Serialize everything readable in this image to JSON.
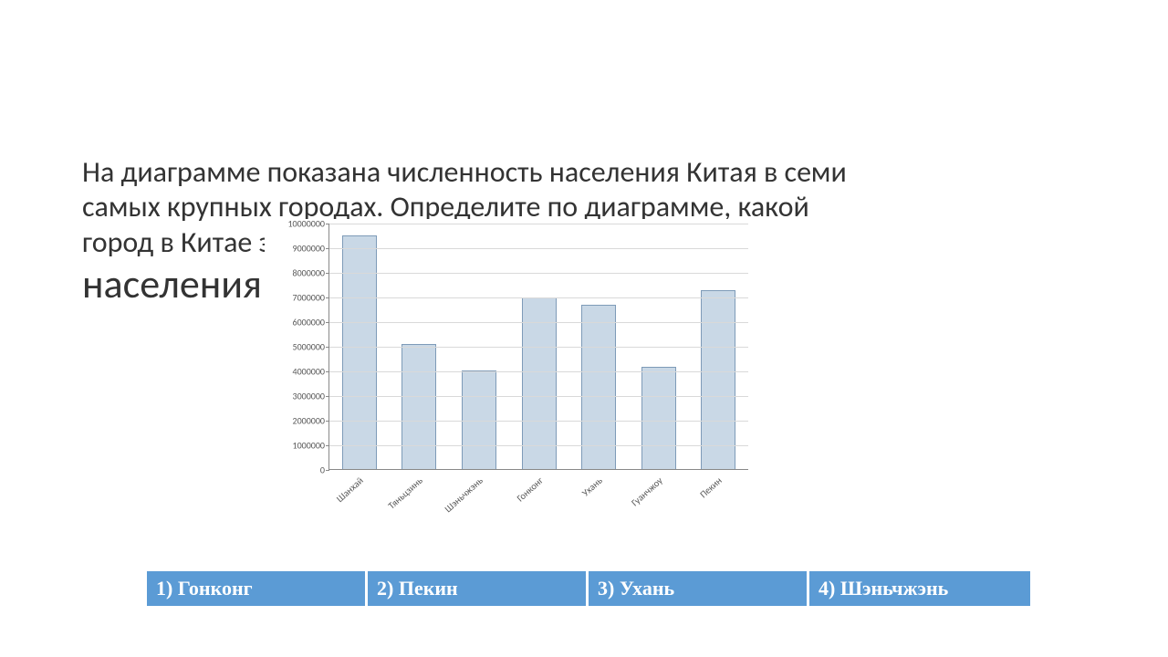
{
  "question": {
    "line1": "На диаграмме показана численность населения Китая в семи",
    "line2": "самых крупных городах. Определите по диаграмме, какой",
    "line3": "город в Китае занимает третье место по численности",
    "line4": "населения"
  },
  "chart": {
    "type": "bar",
    "categories": [
      "Шанхай",
      "Тяньцзинь",
      "Шэньчжэнь",
      "Гонконг",
      "Ухань",
      "Гуанчжоу",
      "Пекин"
    ],
    "values": [
      9500000,
      5100000,
      4000000,
      7000000,
      6700000,
      4150000,
      7300000
    ],
    "bar_fill": "#c9d8e6",
    "bar_border": "#7e9bb8",
    "bar_width": 0.58,
    "ylim": [
      0,
      10000000
    ],
    "ytick_step": 1000000,
    "yticks": [
      "0",
      "1000000",
      "2000000",
      "3000000",
      "4000000",
      "5000000",
      "6000000",
      "7000000",
      "8000000",
      "9000000",
      "10000000"
    ],
    "grid_color": "#d9d9d9",
    "axis_color": "#888888",
    "tick_font_size": 10,
    "xlabel_font_size": 10.5,
    "xlabel_rotation_deg": -42,
    "background_color": "#ffffff",
    "text_color": "#595959"
  },
  "answers": {
    "options": [
      {
        "label": "1) Гонконг",
        "width_pct": 25
      },
      {
        "label": "2) Пекин",
        "width_pct": 25
      },
      {
        "label": "3) Ухань",
        "width_pct": 25
      },
      {
        "label": "4) Шэньчжэнь",
        "width_pct": 25
      }
    ],
    "bg_color": "#5b9bd5",
    "text_color": "#ffffff",
    "font_size": 22
  }
}
